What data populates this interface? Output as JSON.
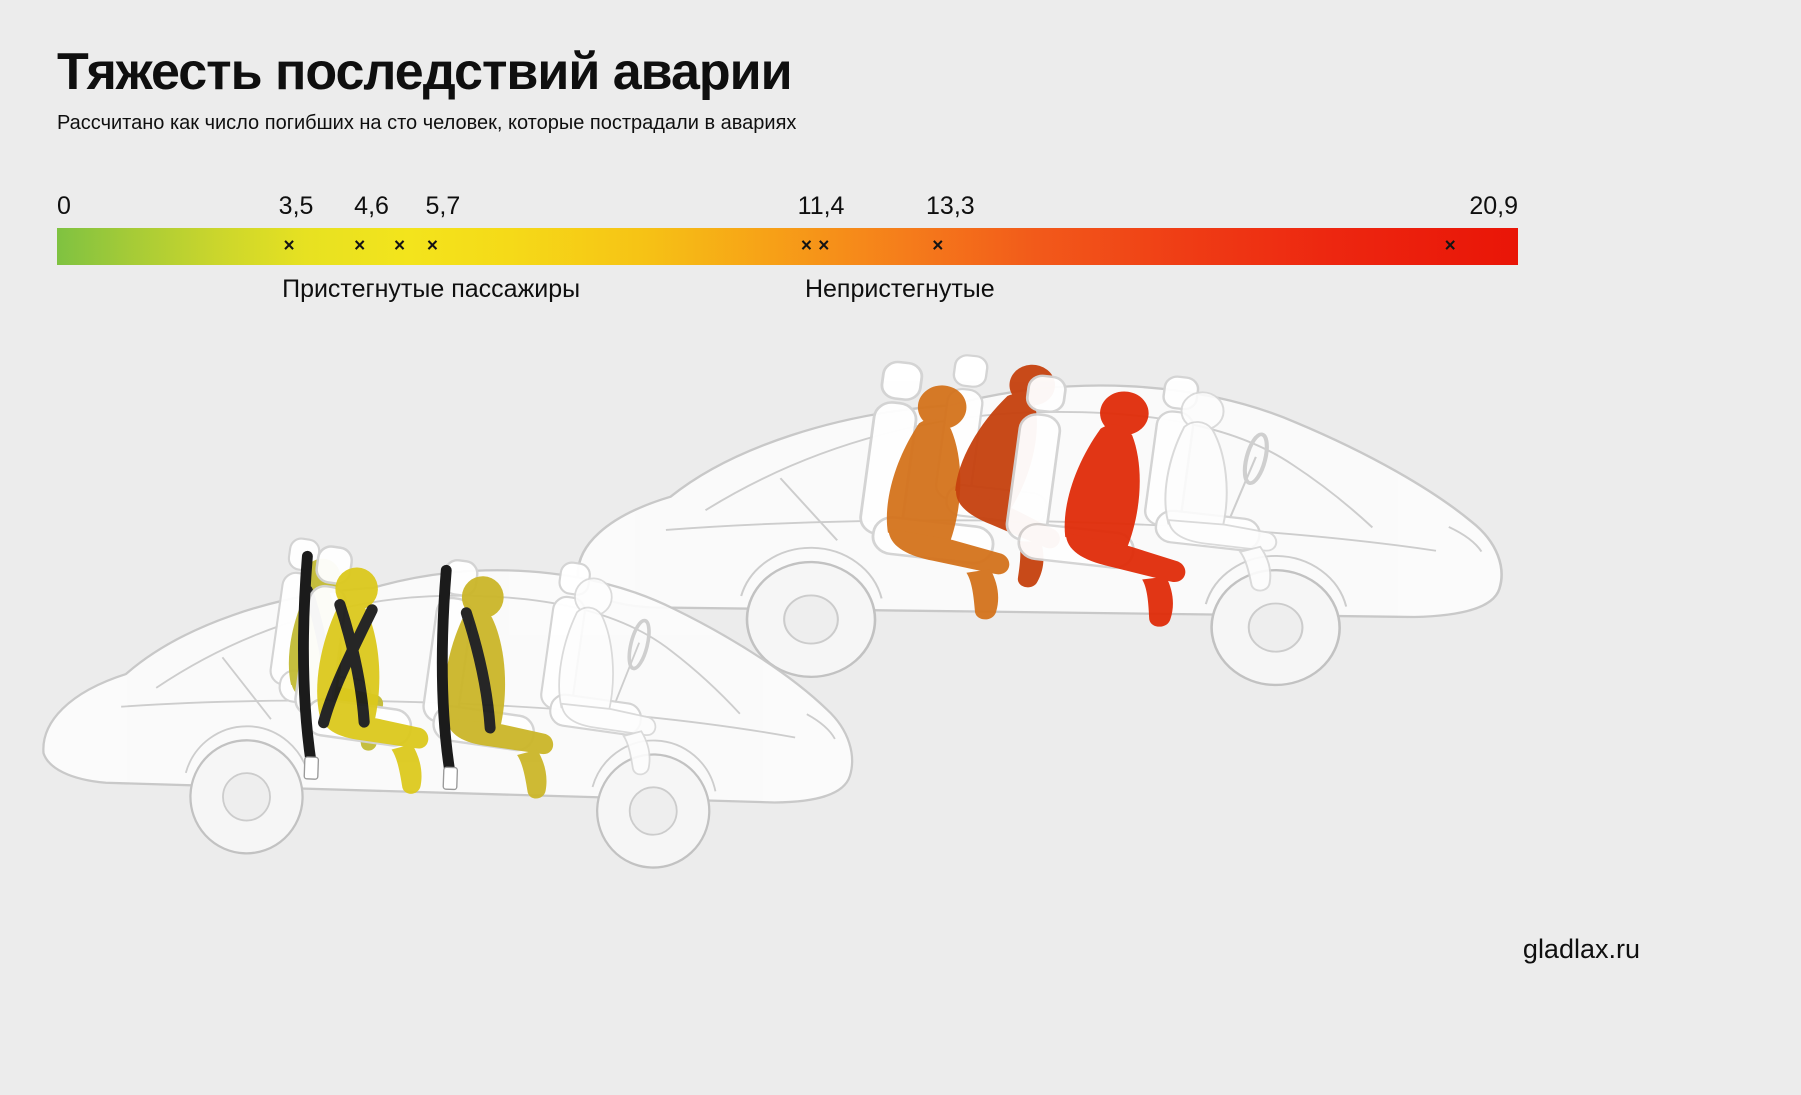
{
  "page": {
    "background": "#ececec",
    "footer": "gladlax.ru"
  },
  "chart_data": {
    "type": "scale",
    "title": "Тяжесть последствий аварии",
    "subtitle": "Рассчитано как число погибших на сто человек, которые пострадали в авариях",
    "axis": {
      "min": 0,
      "max": 20.9
    },
    "marker_glyph": "×",
    "ticks": [
      {
        "label": "0",
        "value": 0,
        "align": "left"
      },
      {
        "label": "3,5",
        "value": 3.5,
        "pos": 3.42
      },
      {
        "label": "4,6",
        "value": 4.6,
        "pos": 4.5
      },
      {
        "label": "5,7",
        "value": 5.7,
        "pos": 5.52
      },
      {
        "label": "11,4",
        "value": 11.4,
        "pos": 10.93
      },
      {
        "label": "13,3",
        "value": 13.3,
        "pos": 12.78
      },
      {
        "label": "20,9",
        "value": 20.9,
        "align": "right"
      }
    ],
    "markers": [
      3.32,
      4.33,
      4.9,
      5.37,
      10.72,
      10.97,
      12.6,
      19.93
    ],
    "groups": [
      {
        "label": "Пристегнутые пассажиры",
        "label_pos": 3.22,
        "values": [
          3.5,
          4.6,
          5.7
        ]
      },
      {
        "label": "Непристегнутые",
        "label_pos": 10.7,
        "values": [
          11.4,
          13.3,
          20.9
        ]
      }
    ],
    "gradient_stops": [
      {
        "color": "#7fc241",
        "pos": 0
      },
      {
        "color": "#a5cb37",
        "pos": 5
      },
      {
        "color": "#cbd62c",
        "pos": 11
      },
      {
        "color": "#e7e121",
        "pos": 17
      },
      {
        "color": "#f3e41c",
        "pos": 24
      },
      {
        "color": "#f5da18",
        "pos": 31
      },
      {
        "color": "#f6c315",
        "pos": 40
      },
      {
        "color": "#f7a017",
        "pos": 49
      },
      {
        "color": "#f57d1b",
        "pos": 58
      },
      {
        "color": "#f25a1a",
        "pos": 67
      },
      {
        "color": "#ef3d15",
        "pos": 77
      },
      {
        "color": "#ed2710",
        "pos": 87
      },
      {
        "color": "#e91507",
        "pos": 100
      }
    ]
  },
  "cars": {
    "left": {
      "label": "Пристегнутые пассажиры",
      "passenger_colors": [
        "#c3bb34",
        "#dcc91d",
        "#cbb629"
      ],
      "belt_color": "#1b1b1b"
    },
    "right": {
      "label": "Непристегнутые",
      "passenger_colors": [
        "#d4731c",
        "#c6410e",
        "#e02c09"
      ]
    }
  }
}
